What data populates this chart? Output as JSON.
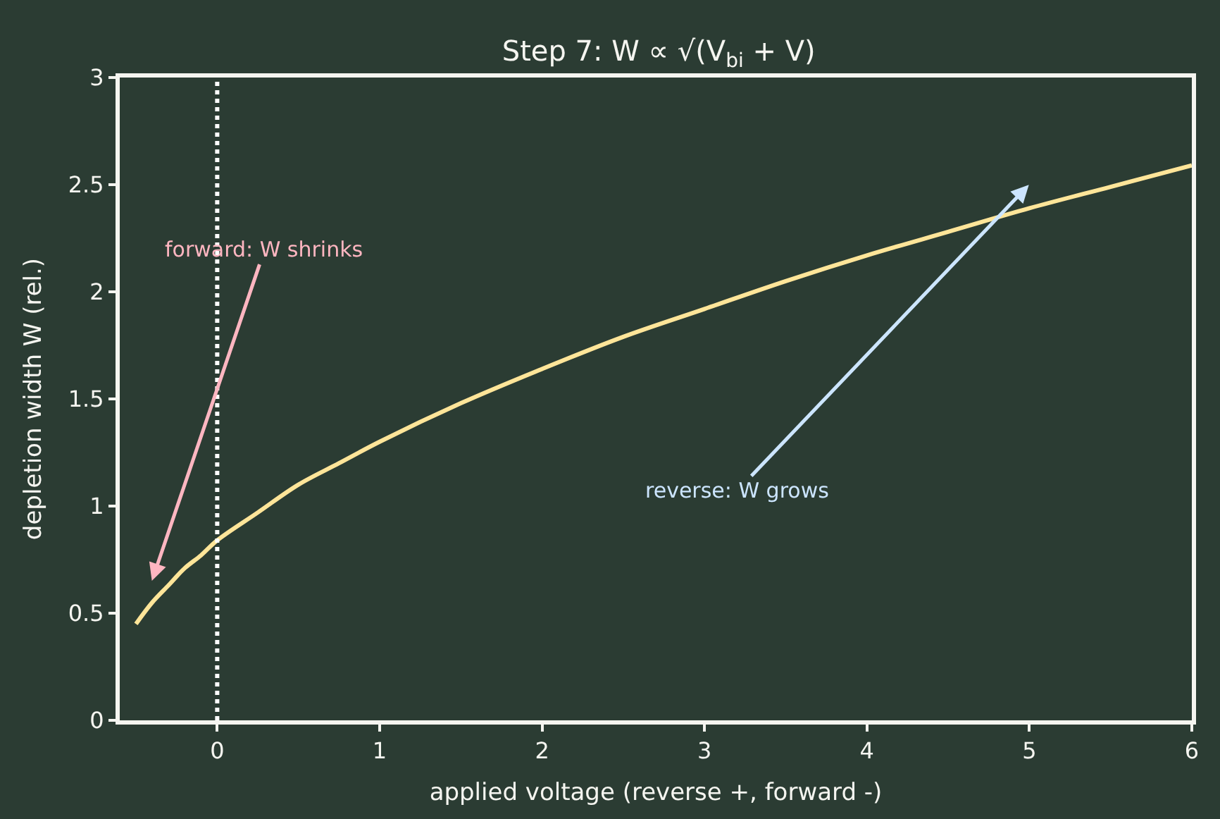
{
  "chart_data": {
    "type": "line",
    "title": "Step 7: W ∝ √(V$_{bi}$ + V)",
    "xlabel": "applied voltage (reverse +, forward -)",
    "ylabel": "depletion width W (rel.)",
    "x": [
      -0.5,
      -0.4,
      -0.3,
      -0.2,
      -0.1,
      0,
      0.25,
      0.5,
      0.75,
      1,
      1.5,
      2,
      2.5,
      3,
      3.5,
      4,
      4.5,
      5,
      5.5,
      6
    ],
    "series": [
      {
        "color": "#ffe599",
        "values": [
          0.45,
          0.55,
          0.63,
          0.71,
          0.77,
          0.84,
          0.97,
          1.1,
          1.2,
          1.3,
          1.48,
          1.64,
          1.79,
          1.92,
          2.05,
          2.17,
          2.28,
          2.39,
          2.49,
          2.59
        ]
      }
    ],
    "xlim": [
      -0.6,
      6
    ],
    "ylim": [
      0,
      3
    ],
    "xticks": [
      0,
      1,
      2,
      3,
      4,
      5,
      6
    ],
    "yticks": [
      0,
      0.5,
      1,
      1.5,
      2,
      2.5,
      3
    ],
    "ref_lines": [
      {
        "axis": "x",
        "value": 0,
        "color": "#ffffff",
        "line_style": "dotted"
      }
    ],
    "annotations": [
      "forward: W shrinks",
      "reverse: W grows"
    ],
    "grid": false,
    "line_style": "solid",
    "marker": "none"
  }
}
